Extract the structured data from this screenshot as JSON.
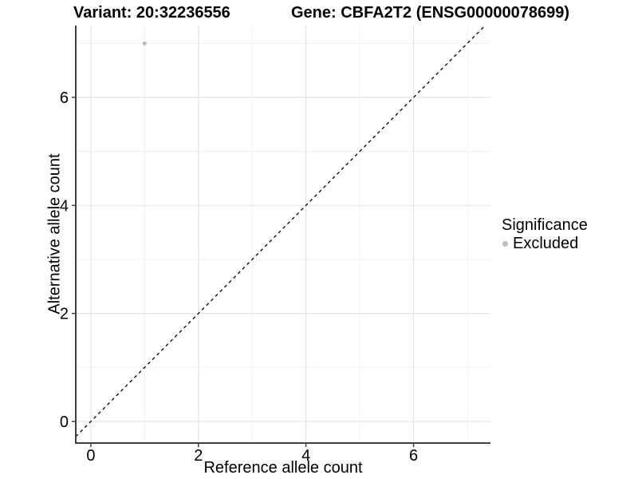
{
  "header": {
    "variant_title": "Variant: 20:32236556",
    "gene_title": "Gene: CBFA2T2 (ENSG00000078699)"
  },
  "legend": {
    "title": "Significance",
    "items": [
      {
        "label": "Excluded",
        "color": "#bdbdbd",
        "shape": "circle"
      }
    ]
  },
  "chart_data": {
    "type": "scatter",
    "title": "Variant: 20:32236556",
    "subtitle": "Gene: CBFA2T2 (ENSG00000078699)",
    "xlabel": "Reference allele count",
    "ylabel": "Alternative allele count",
    "xlim": [
      -0.28,
      7.43
    ],
    "ylim": [
      -0.4,
      7.33
    ],
    "x_ticks": [
      0,
      2,
      4,
      6
    ],
    "y_ticks": [
      0,
      2,
      4,
      6
    ],
    "x_minor_ticks": [
      1,
      3,
      5,
      7
    ],
    "y_minor_ticks": [
      1,
      3,
      5,
      7
    ],
    "grid": true,
    "legend_position": "right",
    "legend_title": "Significance",
    "series": [
      {
        "name": "Excluded",
        "color": "#bdbdbd",
        "marker": "circle",
        "points": [
          [
            1,
            7
          ]
        ]
      }
    ],
    "reference_line": {
      "kind": "identity",
      "slope": 1,
      "intercept": 0,
      "style": "dashed",
      "color": "#000000"
    },
    "colors": {
      "background": "#ffffff",
      "grid_major": "#e4e4e4",
      "grid_minor": "#f1f1f1",
      "axis_line": "#404040",
      "tick_text": "#000000"
    }
  }
}
